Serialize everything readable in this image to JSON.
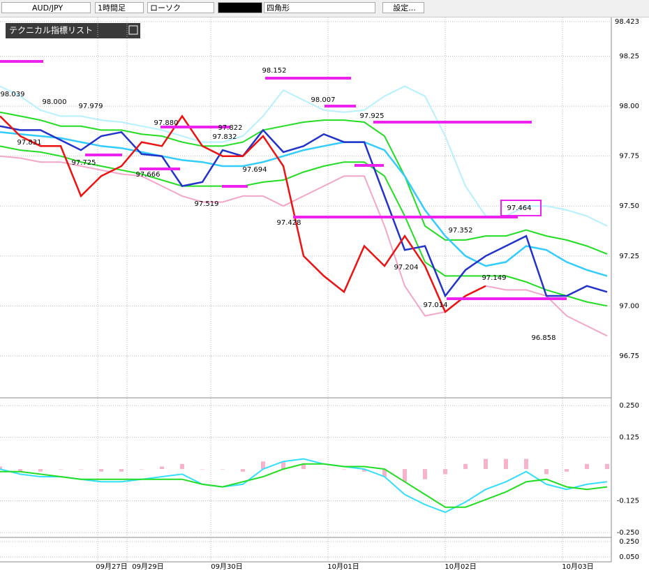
{
  "toolbar": {
    "pair": "AUD/JPY",
    "timeframe": "1時間足",
    "chart_type": "ローソク",
    "shape": "四角形",
    "settings": "設定..."
  },
  "indicator_list": "テクニカル指標リスト",
  "annotations": [
    "98.039",
    "97.831",
    "98.000",
    "97.725",
    "97.979",
    "97.666",
    "97.880",
    "97.822",
    "97.832",
    "97.694",
    "97.519",
    "98.152",
    "98.007",
    "97.428",
    "97.925",
    "97.352",
    "97.204",
    "97.464",
    "97.149",
    "97.014",
    "96.858"
  ],
  "dates": [
    "09月27日",
    "09月29日",
    "09月30日",
    "10月01日",
    "10月02日",
    "10月03日"
  ],
  "chart_data": [
    {
      "type": "line",
      "ylim": [
        96.54,
        98.444
      ],
      "yticks": [
        98.423,
        98.25,
        {
          "value": 98,
          "label": "98.00"
        },
        97.75,
        {
          "value": 97.5,
          "label": "97.50"
        },
        97.25,
        {
          "value": 97,
          "label": "97.00"
        },
        96.75
      ],
      "series": [
        {
          "color": "#b7f0ff",
          "values": [
            98.1,
            98.05,
            97.98,
            97.95,
            97.95,
            97.93,
            97.92,
            97.9,
            97.88,
            97.85,
            97.82,
            97.82,
            97.85,
            97.95,
            98.08,
            98.03,
            97.98,
            97.97,
            97.98,
            98.05,
            98.1,
            98.05,
            97.85,
            97.6,
            97.45,
            97.45,
            97.5,
            97.5,
            97.48,
            97.45,
            97.4
          ]
        },
        {
          "color": "#f4a6c8",
          "values": [
            97.75,
            97.74,
            97.72,
            97.72,
            97.7,
            97.68,
            97.66,
            97.65,
            97.6,
            97.55,
            97.52,
            97.52,
            97.55,
            97.55,
            97.5,
            97.55,
            97.6,
            97.65,
            97.65,
            97.4,
            97.1,
            96.95,
            96.97,
            97.05,
            97.1,
            97.08,
            97.08,
            97.05,
            96.95,
            96.9,
            96.85
          ]
        },
        {
          "color": "#22dd22",
          "values": [
            97.97,
            97.95,
            97.93,
            97.9,
            97.9,
            97.88,
            97.88,
            97.86,
            97.85,
            97.82,
            97.8,
            97.8,
            97.82,
            97.88,
            97.9,
            97.92,
            97.93,
            97.93,
            97.92,
            97.85,
            97.65,
            97.4,
            97.33,
            97.33,
            97.35,
            97.35,
            97.38,
            97.35,
            97.33,
            97.3,
            97.26
          ]
        },
        {
          "color": "#22dd22",
          "values": [
            97.8,
            97.78,
            97.77,
            97.75,
            97.72,
            97.7,
            97.68,
            97.66,
            97.63,
            97.6,
            97.6,
            97.6,
            97.6,
            97.62,
            97.63,
            97.67,
            97.7,
            97.72,
            97.72,
            97.65,
            97.45,
            97.22,
            97.15,
            97.15,
            97.15,
            97.15,
            97.12,
            97.08,
            97.05,
            97.02,
            97.0
          ]
        },
        {
          "color": "#33ccff",
          "values": [
            97.87,
            97.86,
            97.85,
            97.84,
            97.82,
            97.8,
            97.79,
            97.77,
            97.75,
            97.73,
            97.72,
            97.7,
            97.7,
            97.72,
            97.75,
            97.78,
            97.8,
            97.82,
            97.82,
            97.78,
            97.65,
            97.48,
            97.35,
            97.25,
            97.2,
            97.22,
            97.3,
            97.28,
            97.22,
            97.18,
            97.15
          ]
        },
        {
          "color": "#2233cc",
          "values": [
            97.9,
            97.88,
            97.88,
            97.83,
            97.78,
            97.85,
            97.87,
            97.76,
            97.75,
            97.6,
            97.62,
            97.78,
            97.75,
            97.88,
            97.77,
            97.8,
            97.86,
            97.82,
            97.82,
            97.55,
            97.28,
            97.3,
            97.05,
            97.18,
            97.25,
            97.3,
            97.35,
            97.05,
            97.05,
            97.1,
            97.07
          ]
        },
        {
          "color": "#ee1111",
          "values": [
            97.95,
            97.85,
            97.8,
            97.8,
            97.55,
            97.65,
            97.7,
            97.82,
            97.8,
            97.95,
            97.8,
            97.75,
            97.75,
            97.85,
            97.7,
            97.25,
            97.15,
            97.07,
            97.3,
            97.2,
            97.35,
            97.2,
            96.97,
            97.05,
            97.1,
            null,
            null,
            null,
            null,
            null,
            null
          ]
        }
      ]
    },
    {
      "type": "line",
      "ylim": [
        -0.269,
        0.275
      ],
      "yticks": [
        {
          "value": 0.25,
          "label": "0.250"
        },
        0.125,
        -0.125,
        {
          "value": -0.25,
          "label": "-0.250"
        }
      ],
      "bars": {
        "color": "#f7b3cc",
        "values": [
          0.01,
          -0.01,
          -0.01,
          0,
          0,
          -0.01,
          -0.01,
          0,
          0.01,
          0.02,
          0,
          0,
          -0.01,
          0.03,
          0.03,
          0.02,
          0,
          0,
          -0.01,
          -0.03,
          -0.05,
          -0.04,
          -0.02,
          0.02,
          0.04,
          0.04,
          0.04,
          -0.02,
          -0.01,
          0.02,
          0.02
        ]
      },
      "series": [
        {
          "color": "#33ddff",
          "values": [
            0,
            -0.02,
            -0.03,
            -0.03,
            -0.04,
            -0.05,
            -0.05,
            -0.04,
            -0.03,
            -0.02,
            -0.06,
            -0.07,
            -0.06,
            0,
            0.03,
            0.04,
            0.02,
            0.01,
            0,
            -0.03,
            -0.1,
            -0.14,
            -0.17,
            -0.13,
            -0.08,
            -0.05,
            -0.01,
            -0.06,
            -0.08,
            -0.06,
            -0.05
          ]
        },
        {
          "color": "#22dd22",
          "values": [
            -0.01,
            -0.01,
            -0.02,
            -0.03,
            -0.04,
            -0.04,
            -0.04,
            -0.04,
            -0.04,
            -0.04,
            -0.06,
            -0.07,
            -0.05,
            -0.03,
            0,
            0.02,
            0.02,
            0.01,
            0.01,
            0,
            -0.05,
            -0.1,
            -0.15,
            -0.15,
            -0.12,
            -0.09,
            -0.05,
            -0.04,
            -0.07,
            -0.08,
            -0.07
          ]
        }
      ]
    },
    {
      "type": "line",
      "ylim": [
        -0.014,
        0.286
      ],
      "yticks": [
        {
          "value": 0.25,
          "label": "0.250"
        },
        {
          "value": 0.05,
          "label": "0.050"
        }
      ]
    }
  ]
}
